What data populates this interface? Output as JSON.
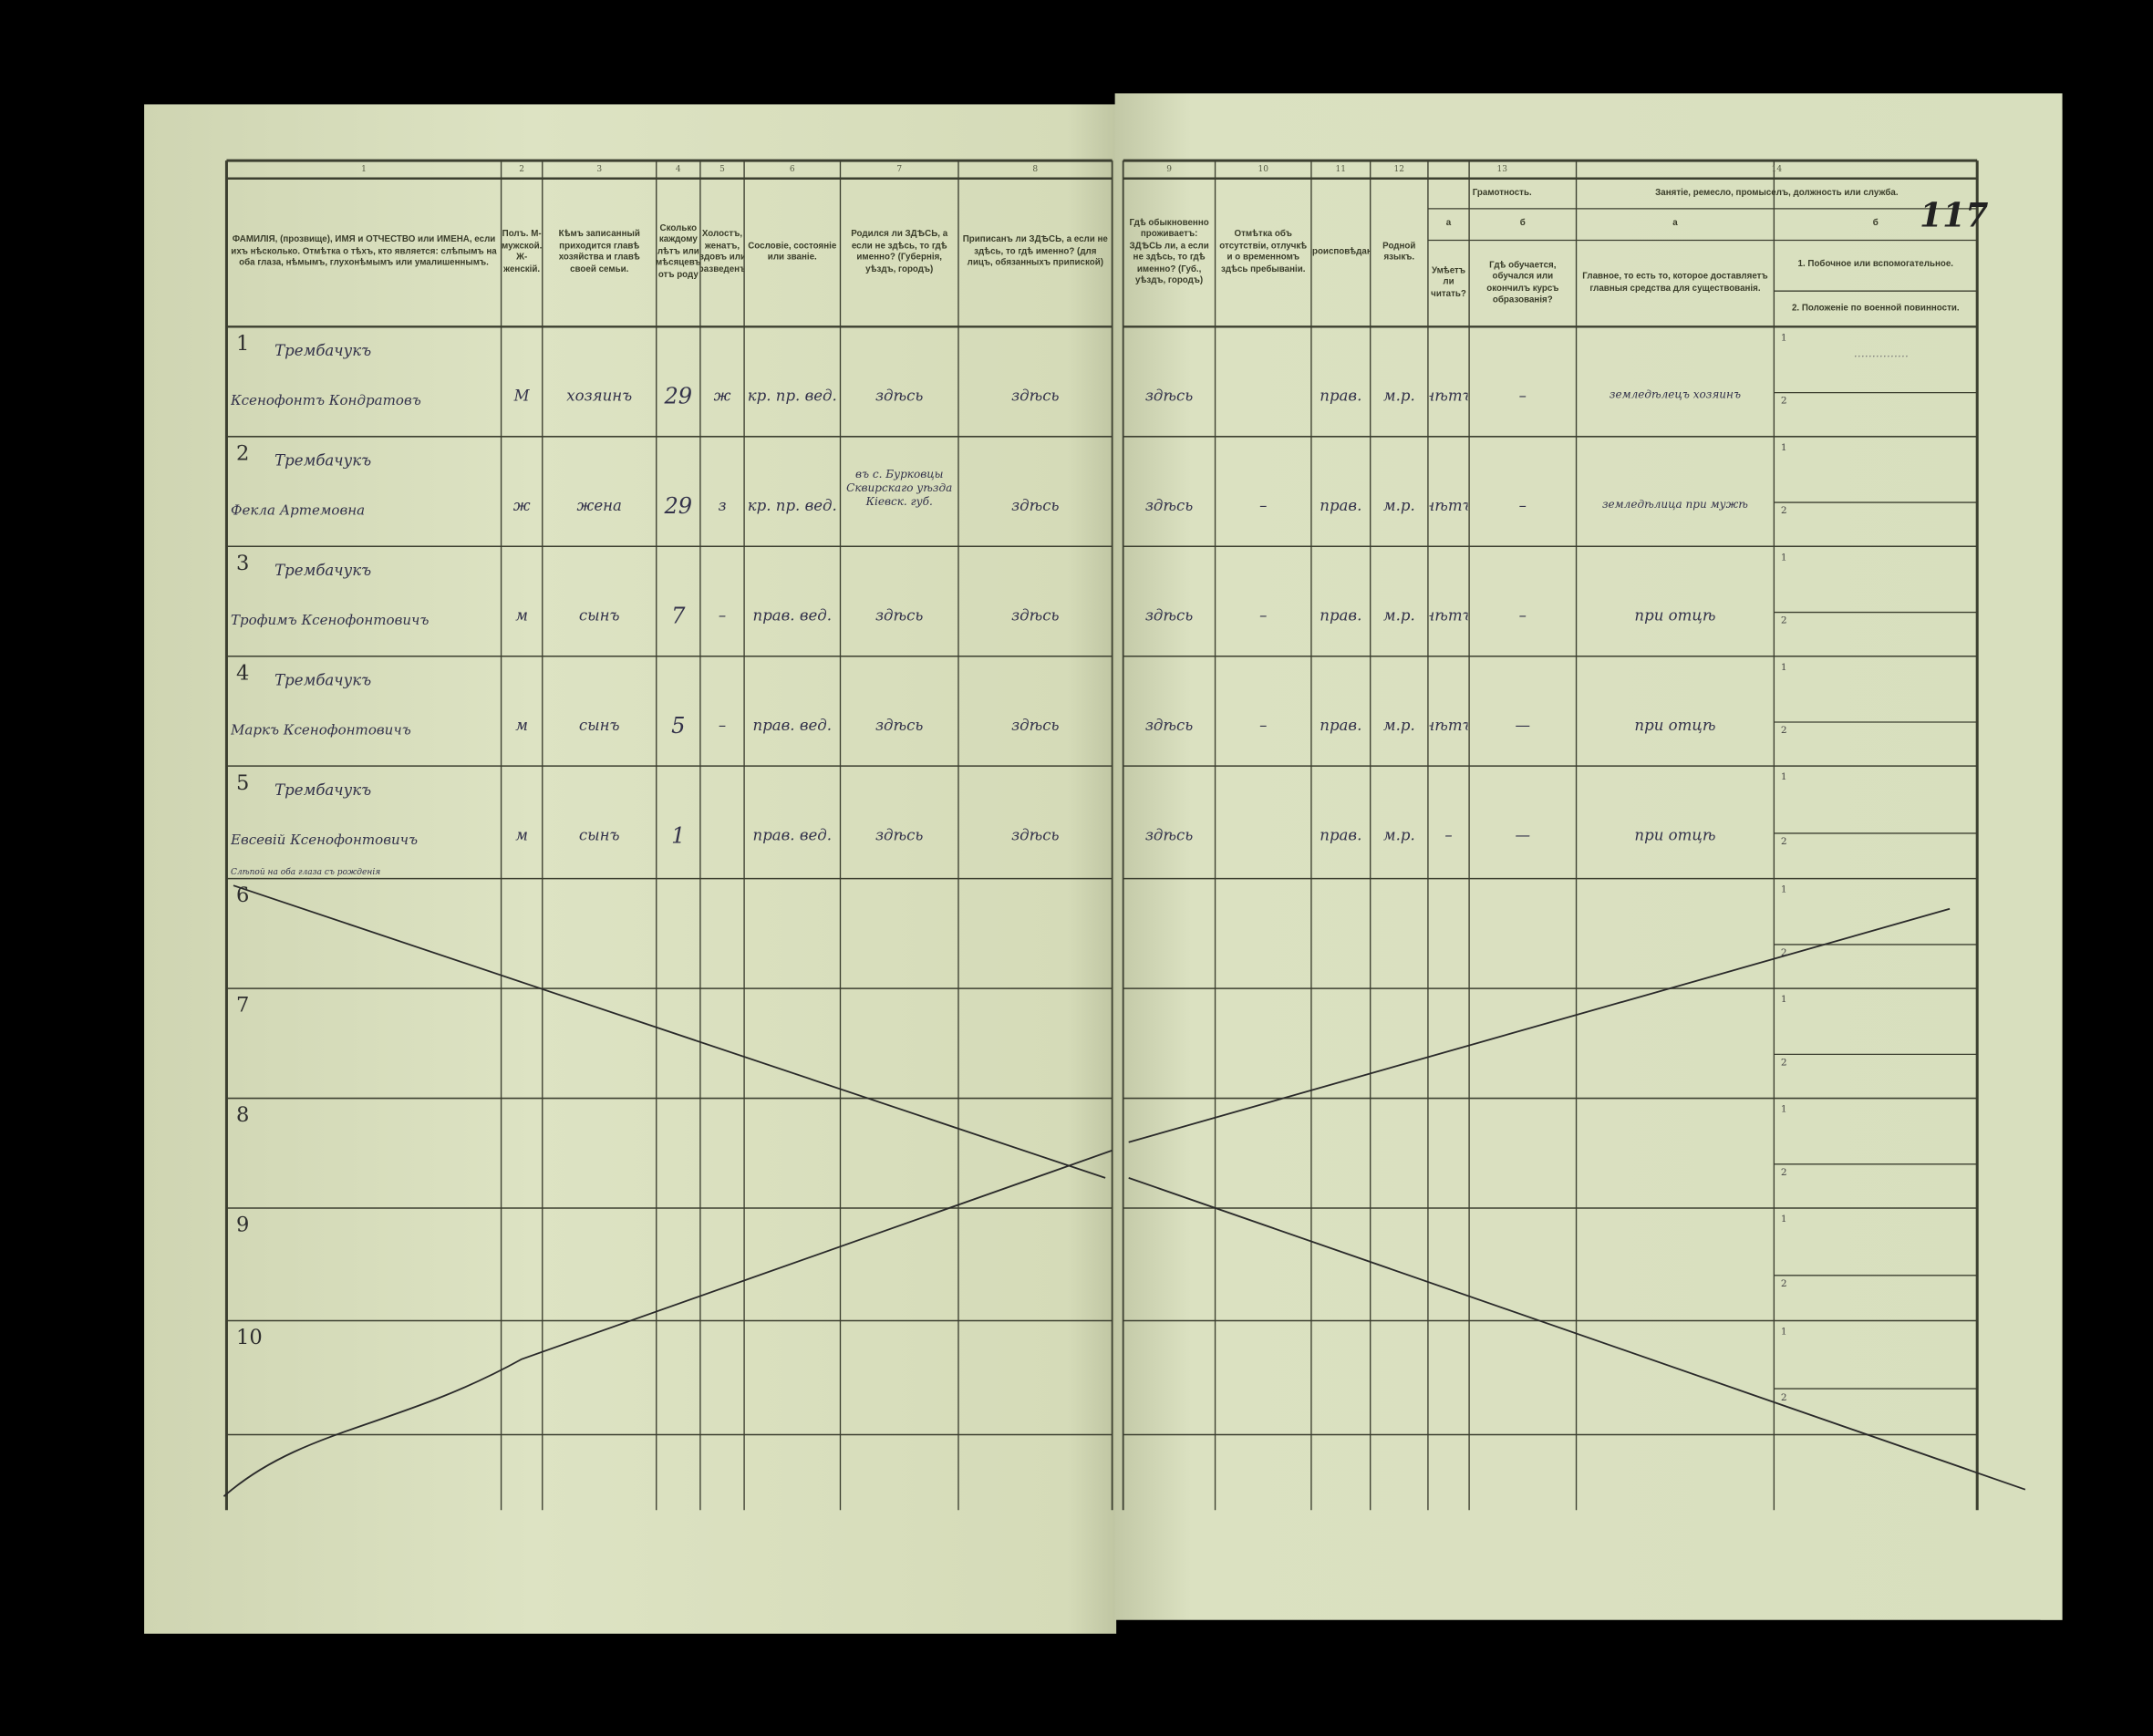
{
  "document": {
    "page_number": "117",
    "column_numbers": [
      "1",
      "2",
      "3",
      "4",
      "5",
      "6",
      "7",
      "8",
      "9",
      "10",
      "11",
      "12",
      "13",
      "14"
    ],
    "headers": {
      "c1": "ФАМИЛІЯ, (прозвище), ИМЯ и ОТЧЕСТВО или ИМЕНА, если ихъ нѣсколько. Отмѣтка о тѣхъ, кто является: слѣпымъ на оба глаза, нѣмымъ, глухонѣмымъ или умалишеннымъ.",
      "c2": "Полъ. М-мужской. Ж-женскій.",
      "c3": "Кѣмъ записанный приходится главѣ хозяйства и главѣ своей семьи.",
      "c4": "Сколько каждому лѣтъ или мѣсяцевъ отъ роду",
      "c5": "Холостъ, женатъ, вдовъ или разведенъ",
      "c6": "Сословіе, состояніе или званіе.",
      "c7": "Родился ли ЗДѢСЬ, а если не здѣсь, то гдѣ именно? (Губернія, уѣздъ, городъ)",
      "c8": "Приписанъ ли ЗДѢСЬ, а если не здѣсь, то гдѣ именно? (для лицъ, обязанныхъ припиской)",
      "c9": "Гдѣ обыкновенно проживаетъ: ЗДѢСЬ ли, а если не здѣсь, то гдѣ именно? (Губ., уѣздъ, городъ)",
      "c10": "Отмѣтка объ отсутствіи, отлучкѣ и о временномъ здѣсь пребываніи.",
      "c11": "Вѣроисповѣданіе.",
      "c12": "Родной языкъ.",
      "c13": "Грамотность.",
      "c13a_letter": "а",
      "c13b_letter": "б",
      "c13a": "Умѣетъ ли читать?",
      "c13b": "Гдѣ обучается, обучался или окончилъ курсъ образованія?",
      "c14": "Занятіе, ремесло, промыселъ, должность или служба.",
      "c14a_letter": "а",
      "c14b_letter": "б",
      "c14a": "Главное, то есть то, которое доставляетъ главныя средства для существованія.",
      "c14b1": "1. Побочное или вспомогательное.",
      "c14b2": "2. Положеніе по военной повинности."
    },
    "row_numbers": [
      "1",
      "2",
      "3",
      "4",
      "5",
      "6",
      "7",
      "8",
      "9",
      "10"
    ],
    "sub_numbers": [
      "1",
      "2"
    ],
    "rows": [
      {
        "surname": "Трембачукъ",
        "given": "Ксенофонтъ Кондратовъ",
        "note": "",
        "sex": "М",
        "relation": "хозяинъ",
        "age": "29",
        "marital": "ж",
        "estate": "кр. пр. вед.",
        "born": "здѣсь",
        "registered": "здѣсь",
        "resides": "здѣсь",
        "absence": "",
        "religion": "прав.",
        "language": "м.р.",
        "literate": "нѣтъ",
        "schooling": "–",
        "occupation": "земледѣлецъ хозяинъ",
        "secondary": "……………"
      },
      {
        "surname": "Трембачукъ",
        "given": "Фекла Артемовна",
        "note": "",
        "sex": "ж",
        "relation": "жена",
        "age": "29",
        "marital": "з",
        "estate": "кр. пр. вед.",
        "born": "въ с. Бурковцы Сквирскаго уѣзда Кіевск. губ.",
        "registered": "здѣсь",
        "resides": "здѣсь",
        "absence": "–",
        "religion": "прав.",
        "language": "м.р.",
        "literate": "нѣтъ",
        "schooling": "–",
        "occupation": "земледѣлица при мужѣ",
        "secondary": ""
      },
      {
        "surname": "Трембачукъ",
        "given": "Трофимъ Ксенофонтовичъ",
        "note": "",
        "sex": "м",
        "relation": "сынъ",
        "age": "7",
        "marital": "–",
        "estate": "прав. вед.",
        "born": "здѣсь",
        "registered": "здѣсь",
        "resides": "здѣсь",
        "absence": "–",
        "religion": "прав.",
        "language": "м.р.",
        "literate": "нѣтъ",
        "schooling": "–",
        "occupation": "при отцѣ",
        "secondary": ""
      },
      {
        "surname": "Трембачукъ",
        "given": "Маркъ Ксенофонтовичъ",
        "note": "",
        "sex": "м",
        "relation": "сынъ",
        "age": "5",
        "marital": "–",
        "estate": "прав. вед.",
        "born": "здѣсь",
        "registered": "здѣсь",
        "resides": "здѣсь",
        "absence": "–",
        "religion": "прав.",
        "language": "м.р.",
        "literate": "нѣтъ",
        "schooling": "—",
        "occupation": "при отцѣ",
        "secondary": ""
      },
      {
        "surname": "Трембачукъ",
        "given": "Евсевій Ксенофонтовичъ",
        "note": "Слѣпой на оба глаза съ рожденія",
        "sex": "м",
        "relation": "сынъ",
        "age": "1",
        "marital": "",
        "estate": "прав. вед.",
        "born": "здѣсь",
        "registered": "здѣсь",
        "resides": "здѣсь",
        "absence": "",
        "religion": "прав.",
        "language": "м.р.",
        "literate": "–",
        "schooling": "—",
        "occupation": "при отцѣ",
        "secondary": ""
      }
    ],
    "colors": {
      "paper": "#d9dfbf",
      "ink": "#33324a",
      "rule": "#3c3f30",
      "background": "#000000"
    }
  }
}
